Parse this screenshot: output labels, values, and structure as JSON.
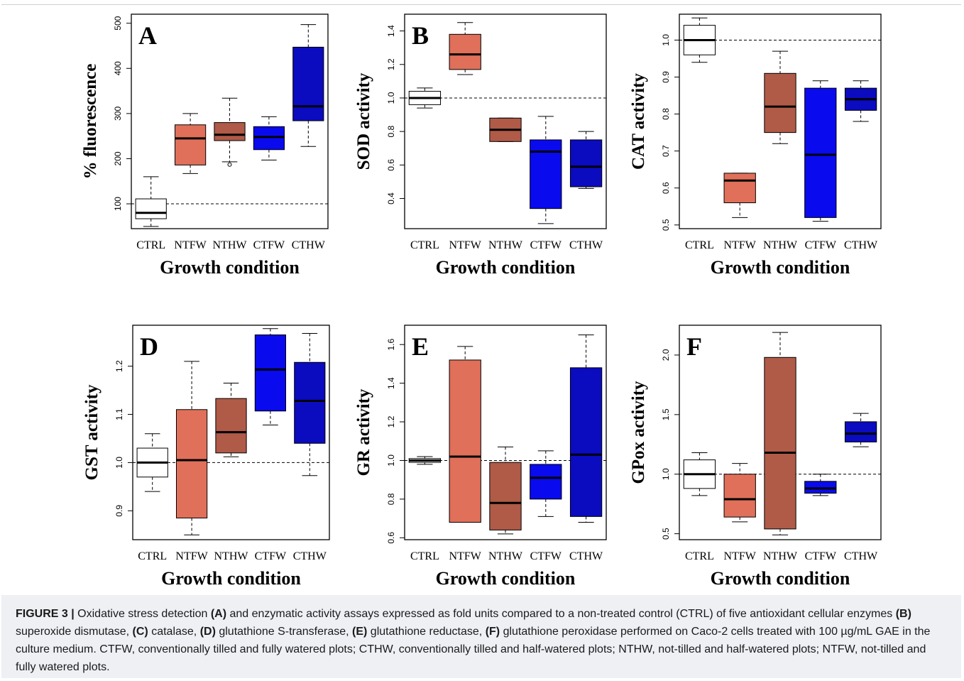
{
  "figure_label": "FIGURE 3 |",
  "caption_parts": [
    {
      "t": " Oxidative stress detection ",
      "b": false
    },
    {
      "t": "(A)",
      "b": true
    },
    {
      "t": " and enzymatic activity assays expressed as fold units compared to a non-treated control (CTRL) of five antioxidant cellular enzymes ",
      "b": false
    },
    {
      "t": "(B)",
      "b": true
    },
    {
      "t": " superoxide dismutase, ",
      "b": false
    },
    {
      "t": "(C)",
      "b": true
    },
    {
      "t": " catalase, ",
      "b": false
    },
    {
      "t": "(D)",
      "b": true
    },
    {
      "t": " glutathione S-transferase, ",
      "b": false
    },
    {
      "t": "(E)",
      "b": true
    },
    {
      "t": " glutathione reductase, ",
      "b": false
    },
    {
      "t": "(F)",
      "b": true
    },
    {
      "t": " glutathione peroxidase performed on Caco-2 cells treated with 100 µg/mL GAE in the culture medium. CTFW, conventionally tilled and fully watered plots; CTHW, conventionally tilled and half-watered plots; NTHW, not-tilled and half-watered plots; NTFW, not-tilled and fully watered plots.",
      "b": false
    }
  ],
  "colors": {
    "CTRL": "#ffffff",
    "NTFW": "#e0705a",
    "NTHW": "#b05a48",
    "CTFW": "#0a0aee",
    "CTHW": "#0b0bc0"
  },
  "chart_data": [
    {
      "type": "box",
      "panel": "A",
      "ylabel": "% fluorescence",
      "xlabel": "Growth condition",
      "categories": [
        "CTRL",
        "NTFW",
        "NTHW",
        "CTFW",
        "CTHW"
      ],
      "ylim": [
        45,
        520
      ],
      "yticks": [
        100,
        200,
        300,
        400,
        500
      ],
      "reference": 100,
      "boxes": [
        {
          "min": 50,
          "q1": 67,
          "median": 80,
          "q3": 111,
          "max": 160,
          "outliers": []
        },
        {
          "min": 167,
          "q1": 186,
          "median": 245,
          "q3": 275,
          "max": 300,
          "outliers": []
        },
        {
          "min": 193,
          "q1": 240,
          "median": 253,
          "q3": 280,
          "max": 334,
          "outliers": [
            187
          ]
        },
        {
          "min": 197,
          "q1": 220,
          "median": 248,
          "q3": 271,
          "max": 293,
          "outliers": []
        },
        {
          "min": 227,
          "q1": 284,
          "median": 316,
          "q3": 447,
          "max": 497,
          "outliers": []
        }
      ]
    },
    {
      "type": "box",
      "panel": "B",
      "ylabel": "SOD activity",
      "xlabel": "Growth condition",
      "categories": [
        "CTRL",
        "NTFW",
        "NTHW",
        "CTFW",
        "CTHW"
      ],
      "ylim": [
        0.22,
        1.5
      ],
      "yticks": [
        0.4,
        0.6,
        0.8,
        1.0,
        1.2,
        1.4
      ],
      "reference": 1.0,
      "boxes": [
        {
          "min": 0.94,
          "q1": 0.96,
          "median": 1.0,
          "q3": 1.04,
          "max": 1.06,
          "outliers": []
        },
        {
          "min": 1.14,
          "q1": 1.17,
          "median": 1.26,
          "q3": 1.38,
          "max": 1.45,
          "outliers": []
        },
        {
          "min": 0.74,
          "q1": 0.74,
          "median": 0.81,
          "q3": 0.88,
          "max": 0.88,
          "outliers": []
        },
        {
          "min": 0.25,
          "q1": 0.34,
          "median": 0.68,
          "q3": 0.75,
          "max": 0.89,
          "outliers": []
        },
        {
          "min": 0.46,
          "q1": 0.47,
          "median": 0.59,
          "q3": 0.75,
          "max": 0.8,
          "outliers": []
        }
      ]
    },
    {
      "type": "box",
      "panel": "C",
      "ylabel": "CAT activity",
      "xlabel": "Growth condition",
      "categories": [
        "CTRL",
        "NTFW",
        "NTHW",
        "CTFW",
        "CTHW"
      ],
      "ylim": [
        0.49,
        1.07
      ],
      "yticks": [
        0.5,
        0.6,
        0.7,
        0.8,
        0.9,
        1.0
      ],
      "reference": 1.0,
      "boxes": [
        {
          "min": 0.94,
          "q1": 0.96,
          "median": 1.0,
          "q3": 1.04,
          "max": 1.06,
          "outliers": []
        },
        {
          "min": 0.52,
          "q1": 0.56,
          "median": 0.62,
          "q3": 0.64,
          "max": 0.64,
          "outliers": []
        },
        {
          "min": 0.72,
          "q1": 0.75,
          "median": 0.82,
          "q3": 0.91,
          "max": 0.97,
          "outliers": []
        },
        {
          "min": 0.51,
          "q1": 0.52,
          "median": 0.69,
          "q3": 0.87,
          "max": 0.89,
          "outliers": []
        },
        {
          "min": 0.78,
          "q1": 0.81,
          "median": 0.84,
          "q3": 0.87,
          "max": 0.89,
          "outliers": []
        }
      ]
    },
    {
      "type": "box",
      "panel": "D",
      "ylabel": "GST activity",
      "xlabel": "Growth condition",
      "categories": [
        "CTRL",
        "NTFW",
        "NTHW",
        "CTFW",
        "CTHW"
      ],
      "ylim": [
        0.84,
        1.285
      ],
      "yticks": [
        0.9,
        1.0,
        1.1,
        1.2
      ],
      "reference": 1.0,
      "boxes": [
        {
          "min": 0.94,
          "q1": 0.97,
          "median": 1.0,
          "q3": 1.03,
          "max": 1.06,
          "outliers": []
        },
        {
          "min": 0.85,
          "q1": 0.885,
          "median": 1.005,
          "q3": 1.11,
          "max": 1.21,
          "outliers": []
        },
        {
          "min": 1.012,
          "q1": 1.02,
          "median": 1.063,
          "q3": 1.133,
          "max": 1.165,
          "outliers": []
        },
        {
          "min": 1.078,
          "q1": 1.107,
          "median": 1.193,
          "q3": 1.265,
          "max": 1.278,
          "outliers": []
        },
        {
          "min": 0.973,
          "q1": 1.04,
          "median": 1.128,
          "q3": 1.208,
          "max": 1.268,
          "outliers": []
        }
      ]
    },
    {
      "type": "box",
      "panel": "E",
      "ylabel": "GR activity",
      "xlabel": "Growth condition",
      "categories": [
        "CTRL",
        "NTFW",
        "NTHW",
        "CTFW",
        "CTHW"
      ],
      "ylim": [
        0.59,
        1.7
      ],
      "yticks": [
        0.6,
        0.8,
        1.0,
        1.2,
        1.4,
        1.6
      ],
      "reference": 1.0,
      "boxes": [
        {
          "min": 0.98,
          "q1": 0.99,
          "median": 1.0,
          "q3": 1.01,
          "max": 1.02,
          "outliers": []
        },
        {
          "min": 0.68,
          "q1": 0.68,
          "median": 1.02,
          "q3": 1.52,
          "max": 1.59,
          "outliers": []
        },
        {
          "min": 0.62,
          "q1": 0.64,
          "median": 0.78,
          "q3": 0.99,
          "max": 1.07,
          "outliers": []
        },
        {
          "min": 0.71,
          "q1": 0.8,
          "median": 0.91,
          "q3": 0.98,
          "max": 1.05,
          "outliers": []
        },
        {
          "min": 0.68,
          "q1": 0.71,
          "median": 1.03,
          "q3": 1.48,
          "max": 1.65,
          "outliers": []
        }
      ]
    },
    {
      "type": "box",
      "panel": "F",
      "ylabel": "GPox activity",
      "xlabel": "Growth condition",
      "categories": [
        "CTRL",
        "NTFW",
        "NTHW",
        "CTFW",
        "CTHW"
      ],
      "ylim": [
        0.45,
        2.25
      ],
      "yticks": [
        0.5,
        1.0,
        1.5,
        2.0
      ],
      "reference": 1.0,
      "boxes": [
        {
          "min": 0.82,
          "q1": 0.88,
          "median": 1.0,
          "q3": 1.12,
          "max": 1.18,
          "outliers": []
        },
        {
          "min": 0.6,
          "q1": 0.64,
          "median": 0.79,
          "q3": 1.0,
          "max": 1.09,
          "outliers": []
        },
        {
          "min": 0.49,
          "q1": 0.54,
          "median": 1.18,
          "q3": 1.98,
          "max": 2.19,
          "outliers": []
        },
        {
          "min": 0.82,
          "q1": 0.84,
          "median": 0.88,
          "q3": 0.94,
          "max": 1.0,
          "outliers": []
        },
        {
          "min": 1.23,
          "q1": 1.27,
          "median": 1.34,
          "q3": 1.44,
          "max": 1.51,
          "outliers": []
        }
      ]
    }
  ]
}
